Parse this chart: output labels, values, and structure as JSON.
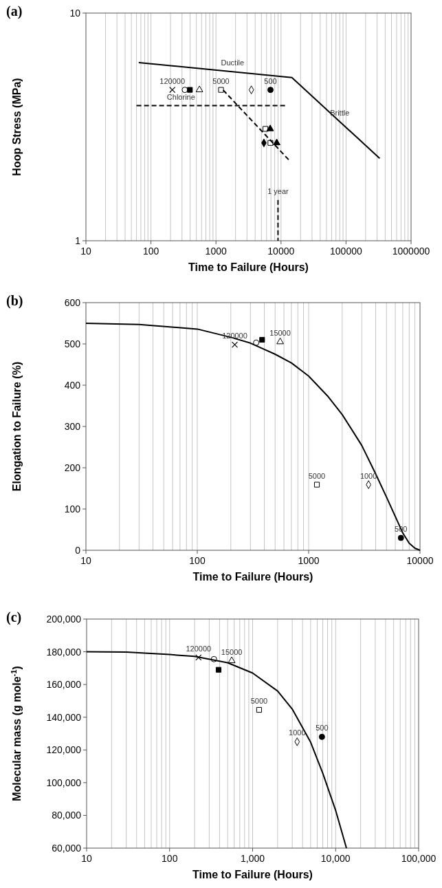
{
  "chart_data": [
    {
      "type": "scatter",
      "title": "(a)",
      "xlabel": "Time to Failure (Hours)",
      "ylabel": "Hoop Stress (MPa)",
      "log": "xy",
      "xlim": [
        10,
        1000000
      ],
      "ylim": [
        1,
        10
      ],
      "xticks": [
        10,
        100,
        1000,
        10000,
        100000,
        1000000
      ],
      "yticks": [
        1,
        10
      ],
      "grid": "x",
      "series": [
        {
          "marker": "cross",
          "color": "#000000",
          "x": [
            213
          ],
          "values": [
            4.6
          ]
        },
        {
          "marker": "circle",
          "color": "#ffffff",
          "x": [
            332
          ],
          "values": [
            4.6
          ]
        },
        {
          "marker": "square",
          "color": "#000000",
          "x": [
            397
          ],
          "values": [
            4.6
          ]
        },
        {
          "marker": "triangle",
          "color": "#ffffff",
          "x": [
            556
          ],
          "values": [
            4.6
          ]
        },
        {
          "marker": "square",
          "color": "#ffffff",
          "x": [
            1195,
            5760,
            6870
          ],
          "values": [
            4.6,
            3.1,
            2.69
          ]
        },
        {
          "marker": "diamond",
          "color": "#ffffff",
          "x": [
            3500
          ],
          "values": [
            4.6
          ]
        },
        {
          "marker": "circle",
          "color": "#000000",
          "x": [
            6890
          ],
          "values": [
            4.6
          ]
        },
        {
          "marker": "triangle",
          "color": "#000000",
          "x": [
            6820,
            8590
          ],
          "values": [
            3.1,
            2.69
          ]
        },
        {
          "marker": "diamond",
          "color": "#000000",
          "x": [
            5460
          ],
          "values": [
            2.69
          ]
        },
        {
          "type": "line",
          "line_style": "solid",
          "color": "#000000",
          "x": [
            65,
            14700,
            329000
          ],
          "values": [
            6.06,
            5.21,
            2.3
          ]
        },
        {
          "type": "line",
          "line_style": "dashed",
          "color": "#000000",
          "x": [
            1290,
            13100
          ],
          "values": [
            4.59,
            2.27
          ]
        },
        {
          "type": "line",
          "line_style": "dashed",
          "color": "#000000",
          "x": [
            60,
            11700
          ],
          "values": [
            3.92,
            3.92
          ]
        },
        {
          "type": "line",
          "line_style": "dashed",
          "color": "#000000",
          "x": [
            8990,
            8990
          ],
          "values": [
            1.51,
            1
          ]
        }
      ],
      "annotations": [
        {
          "text": "120000",
          "x": 213,
          "y": 4.6
        },
        {
          "text": "5000",
          "x": 1195,
          "y": 4.6
        },
        {
          "text": "500",
          "x": 6890,
          "y": 4.6
        },
        {
          "text": "Ductile",
          "x": 1800,
          "y": 5.52
        },
        {
          "text": "Chlorine",
          "x": 290,
          "y": 3.92
        },
        {
          "text": "Brittle",
          "x": 80000,
          "y": 3.34
        },
        {
          "text": "1 year",
          "x": 8990,
          "y": 1.51
        }
      ]
    },
    {
      "type": "scatter",
      "title": "(b)",
      "xlabel": "Time to Failure (Hours)",
      "ylabel": "Elongation to Failure (%)",
      "log": "x",
      "xlim": [
        10,
        10000
      ],
      "ylim": [
        0,
        600
      ],
      "xticks": [
        10,
        100,
        1000,
        10000
      ],
      "yticks": [
        0,
        100,
        200,
        300,
        400,
        500,
        600
      ],
      "grid": "x",
      "series": [
        {
          "marker": "cross",
          "color": "#000000",
          "x": [
            217
          ],
          "values": [
            498
          ]
        },
        {
          "marker": "circle",
          "color": "#ffffff",
          "x": [
            338
          ],
          "values": [
            503
          ]
        },
        {
          "marker": "square",
          "color": "#000000",
          "x": [
            382
          ],
          "values": [
            510
          ]
        },
        {
          "marker": "triangle",
          "color": "#ffffff",
          "x": [
            555
          ],
          "values": [
            505
          ]
        },
        {
          "marker": "square",
          "color": "#ffffff",
          "x": [
            1186
          ],
          "values": [
            159
          ]
        },
        {
          "marker": "diamond",
          "color": "#ffffff",
          "x": [
            3450
          ],
          "values": [
            159
          ]
        },
        {
          "marker": "circle",
          "color": "#000000",
          "x": [
            6740
          ],
          "values": [
            30
          ]
        },
        {
          "type": "line",
          "line_style": "solid",
          "color": "#000000",
          "x": [
            10,
            30,
            100,
            200,
            300,
            500,
            700,
            1000,
            1500,
            2000,
            3000,
            4000,
            5000,
            7000,
            8000,
            9000,
            10000
          ],
          "values": [
            550,
            547,
            536,
            516,
            502,
            475,
            454,
            422,
            372,
            329,
            254,
            185,
            129,
            42,
            17,
            5,
            0
          ]
        }
      ],
      "annotations": [
        {
          "text": "120000",
          "x": 217,
          "y": 498
        },
        {
          "text": "15000",
          "x": 555,
          "y": 505
        },
        {
          "text": "5000",
          "x": 1186,
          "y": 159
        },
        {
          "text": "1000",
          "x": 3450,
          "y": 159
        },
        {
          "text": "500",
          "x": 6740,
          "y": 30
        }
      ]
    },
    {
      "type": "scatter",
      "title": "(c)",
      "xlabel": "Time to Failure (Hours)",
      "ylabel": "Molecular mass (g mole$^{-1}$)",
      "log": "x",
      "xlim": [
        10,
        100000
      ],
      "ylim": [
        60000,
        200000
      ],
      "xticks": [
        10,
        100,
        {
          "value": 1000,
          "label": "1,000"
        },
        {
          "value": 10000,
          "label": "10,000"
        },
        {
          "value": 100000,
          "label": "100,000"
        }
      ],
      "yticks": [
        {
          "value": 60000,
          "label": "60,000"
        },
        {
          "value": 80000,
          "label": "80,000"
        },
        {
          "value": 100000,
          "label": "100,000"
        },
        {
          "value": 120000,
          "label": "120,000"
        },
        {
          "value": 140000,
          "label": "140,000"
        },
        {
          "value": 160000,
          "label": "160,000"
        },
        {
          "value": 180000,
          "label": "180,000"
        },
        {
          "value": 200000,
          "label": "200,000"
        }
      ],
      "grid": "x",
      "series": [
        {
          "marker": "cross",
          "color": "#000000",
          "x": [
            223
          ],
          "values": [
            176500
          ]
        },
        {
          "marker": "circle",
          "color": "#ffffff",
          "x": [
            342
          ],
          "values": [
            175500
          ]
        },
        {
          "marker": "square",
          "color": "#000000",
          "x": [
            389
          ],
          "values": [
            169000
          ]
        },
        {
          "marker": "triangle",
          "color": "#ffffff",
          "x": [
            560
          ],
          "values": [
            174500
          ]
        },
        {
          "marker": "square",
          "color": "#ffffff",
          "x": [
            1197
          ],
          "values": [
            144500
          ]
        },
        {
          "marker": "diamond",
          "color": "#ffffff",
          "x": [
            3440
          ],
          "values": [
            125000
          ]
        },
        {
          "marker": "circle",
          "color": "#000000",
          "x": [
            6840
          ],
          "values": [
            128000
          ]
        },
        {
          "type": "line",
          "line_style": "solid",
          "color": "#000000",
          "x": [
            10,
            30,
            100,
            200,
            500,
            1000,
            2000,
            3000,
            5000,
            7000,
            10000,
            13500
          ],
          "values": [
            180000,
            179800,
            178300,
            177200,
            173300,
            167000,
            156000,
            145000,
            124700,
            105800,
            83100,
            60000
          ]
        }
      ],
      "annotations": [
        {
          "text": "120000",
          "x": 223,
          "y": 176500
        },
        {
          "text": "15000",
          "x": 560,
          "y": 174500
        },
        {
          "text": "5000",
          "x": 1197,
          "y": 144500
        },
        {
          "text": "1000",
          "x": 3440,
          "y": 125000
        },
        {
          "text": "500",
          "x": 6840,
          "y": 128000
        }
      ]
    }
  ]
}
